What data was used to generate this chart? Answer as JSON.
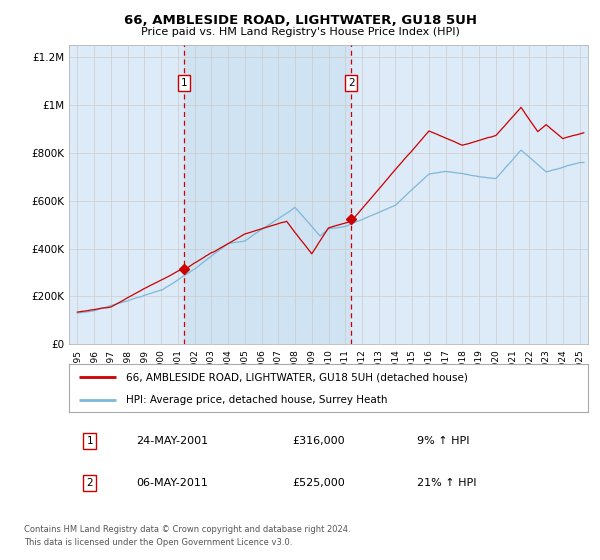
{
  "title": "66, AMBLESIDE ROAD, LIGHTWATER, GU18 5UH",
  "subtitle": "Price paid vs. HM Land Registry's House Price Index (HPI)",
  "legend_line1": "66, AMBLESIDE ROAD, LIGHTWATER, GU18 5UH (detached house)",
  "legend_line2": "HPI: Average price, detached house, Surrey Heath",
  "annotation1_date": "24-MAY-2001",
  "annotation1_price": "£316,000",
  "annotation1_hpi": "9% ↑ HPI",
  "annotation1_year": 2001.38,
  "annotation1_value": 316000,
  "annotation2_date": "06-MAY-2011",
  "annotation2_price": "£525,000",
  "annotation2_hpi": "21% ↑ HPI",
  "annotation2_year": 2011.35,
  "annotation2_value": 525000,
  "footer_line1": "Contains HM Land Registry data © Crown copyright and database right 2024.",
  "footer_line2": "This data is licensed under the Open Government Licence v3.0.",
  "ylim": [
    0,
    1250000
  ],
  "yticks": [
    0,
    200000,
    400000,
    600000,
    800000,
    1000000,
    1200000
  ],
  "ytick_labels": [
    "£0",
    "£200K",
    "£400K",
    "£600K",
    "£800K",
    "£1M",
    "£1.2M"
  ],
  "xmin": 1994.5,
  "xmax": 2025.5,
  "hpi_color": "#7db8d8",
  "price_color": "#cc0000",
  "bg_color": "#ddeaf7",
  "shade_color": "#c8dff0",
  "plot_bg": "#ffffff",
  "grid_color": "#cccccc",
  "ann_box_color": "#cc0000",
  "dash_color": "#cc0000"
}
